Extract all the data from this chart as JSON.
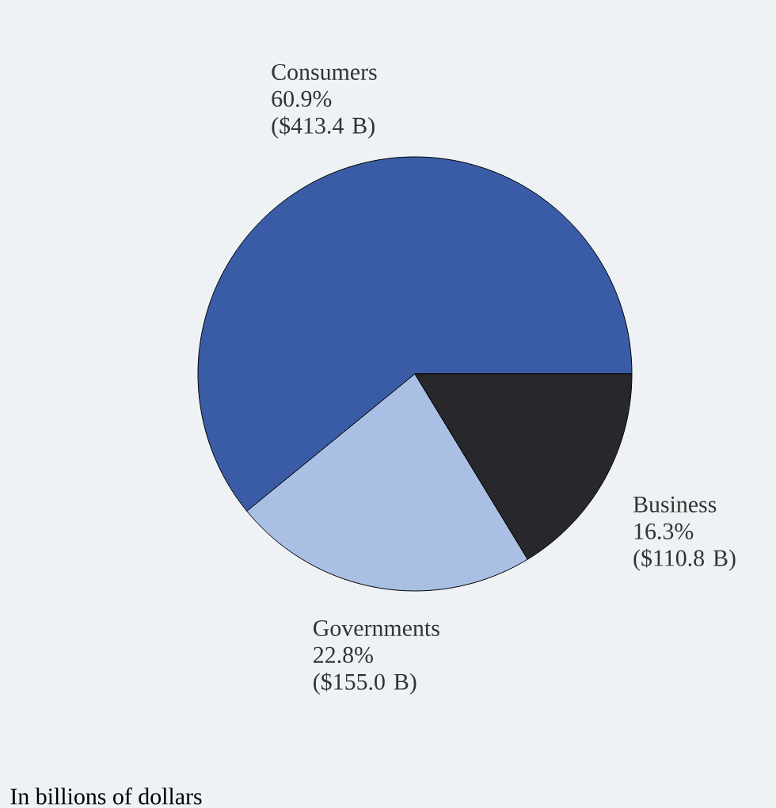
{
  "chart_data": {
    "type": "pie",
    "categories": [
      "Consumers",
      "Governments",
      "Business"
    ],
    "values": [
      60.9,
      22.8,
      16.3
    ],
    "value_labels": [
      "60.9% ($413.4 B)",
      "22.8% ($155.0 B)",
      "16.3% ($110.8 B)"
    ],
    "colors": [
      "#3a5ca6",
      "#a9bfe3",
      "#28282c"
    ],
    "annotations": [
      "In billions of dollars"
    ]
  }
}
